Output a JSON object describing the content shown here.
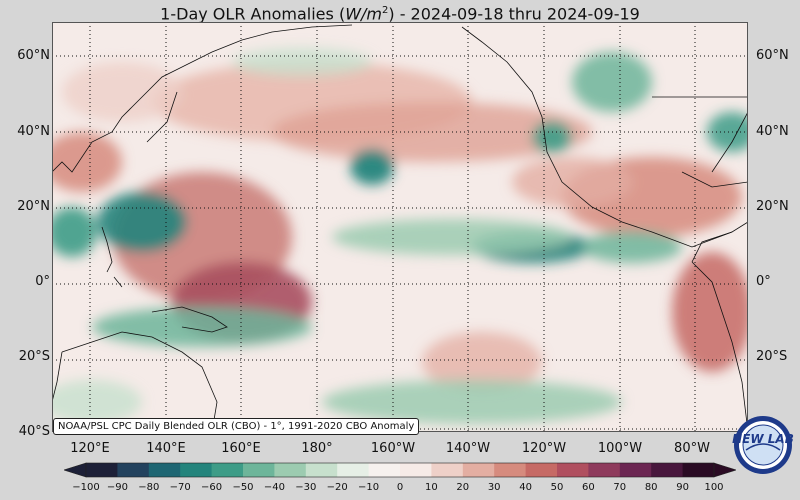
{
  "title": {
    "prefix": "1-Day OLR Anomalies (",
    "unit_base": "W/m",
    "unit_exp": "2",
    "suffix": ") - 2024-09-18 thru 2024-09-19"
  },
  "lat_labels": [
    "60°N",
    "40°N",
    "20°N",
    "0°",
    "20°S",
    "40°S"
  ],
  "lat_values": [
    60,
    40,
    20,
    0,
    -20,
    -40
  ],
  "lon_labels": [
    "120°E",
    "140°E",
    "160°E",
    "180°",
    "160°W",
    "140°W",
    "120°W",
    "100°W",
    "80°W"
  ],
  "lon_values": [
    120,
    140,
    160,
    180,
    200,
    220,
    240,
    260,
    280
  ],
  "map_extent": {
    "lon_min": 111,
    "lon_max": 295,
    "lat_min": -41,
    "lat_max": 67
  },
  "credit": "NOAA/PSL CPC Daily Blended OLR (CBO) - 1°, 1991-2020 CBO Anomaly",
  "colorbar": {
    "ticks": [
      "−100",
      "−90",
      "−80",
      "−70",
      "−60",
      "−50",
      "−40",
      "−30",
      "−20",
      "−10",
      "0",
      "10",
      "20",
      "30",
      "40",
      "50",
      "60",
      "70",
      "80",
      "90",
      "100"
    ],
    "min": -100,
    "max": 100,
    "colors": [
      "#1d2038",
      "#23425e",
      "#1e6673",
      "#23847c",
      "#3d9c87",
      "#6db59a",
      "#9ccbb0",
      "#c7e0cd",
      "#e6efe6",
      "#f6f1ee",
      "#f6ebe7",
      "#eed0c8",
      "#e3aea2",
      "#d68b7e",
      "#c66a65",
      "#b04f5f",
      "#8e3a5c",
      "#6b2652",
      "#48173d",
      "#2a0b24"
    ]
  },
  "logo": {
    "text": "NEW LAB"
  },
  "colors": {
    "ocean_neutral": "#f5ebe8",
    "coast": "#111111",
    "grid": "#111111"
  }
}
